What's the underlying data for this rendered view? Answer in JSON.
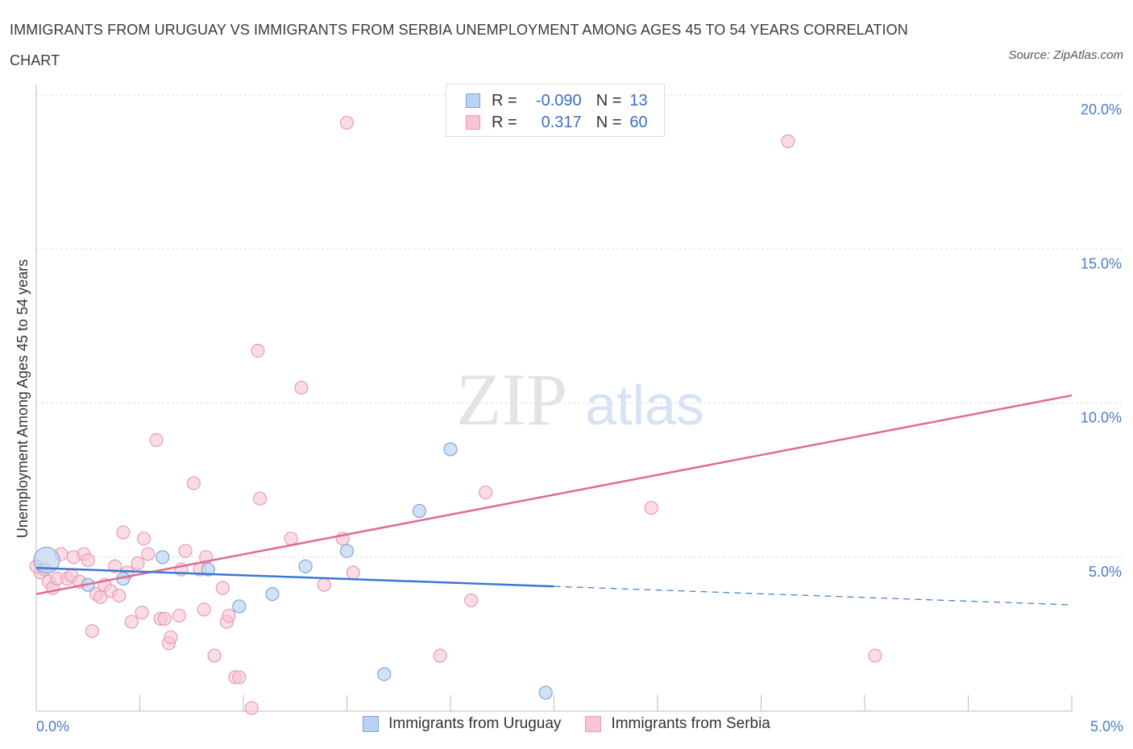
{
  "title": "IMMIGRANTS FROM URUGUAY VS IMMIGRANTS FROM SERBIA UNEMPLOYMENT AMONG AGES 45 TO 54 YEARS CORRELATION CHART",
  "source": "Source: ZipAtlas.com",
  "watermark": {
    "zip": "ZIP",
    "atlas": "atlas"
  },
  "colors": {
    "uruguay_fill": "#b9d2f3",
    "uruguay_stroke": "#7ea6db",
    "uruguay_line": "#3a78d4",
    "serbia_fill": "#f7c5d3",
    "serbia_stroke": "#eb9bb4",
    "serbia_line": "#e06a94",
    "grid": "#dddddd",
    "axis": "#bbbbbb"
  },
  "legend_top": {
    "rows": [
      {
        "r_label": "R = ",
        "r_value": "-0.090",
        "n_label": "N = ",
        "n_value": "13"
      },
      {
        "r_label": "R = ",
        "r_value": "0.317",
        "n_label": "N = ",
        "n_value": "60"
      }
    ]
  },
  "legend_bottom": [
    "Immigrants from Uruguay",
    "Immigrants from Serbia"
  ],
  "chart_data": {
    "type": "scatter",
    "title": "IMMIGRANTS FROM URUGUAY VS IMMIGRANTS FROM SERBIA UNEMPLOYMENT AMONG AGES 45 TO 54 YEARS CORRELATION CHART",
    "xlabel": "",
    "ylabel": "Unemployment Among Ages 45 to 54 years",
    "xlim": [
      0,
      5
    ],
    "ylim": [
      0,
      20
    ],
    "x_tick_labels": [
      "0.0%",
      "5.0%"
    ],
    "y_ticks": [
      5,
      10,
      15,
      20
    ],
    "y_tick_labels": [
      "5.0%",
      "10.0%",
      "15.0%",
      "20.0%"
    ],
    "grid": true,
    "series": [
      {
        "name": "Immigrants from Uruguay",
        "R": -0.09,
        "N": 13,
        "trend": {
          "x0": 0,
          "y0": 4.65,
          "x1": 2.5,
          "y1": 4.05,
          "dash_to_x": 5.0,
          "dash_to_y": 3.45
        },
        "points": [
          {
            "x": 0.05,
            "y": 4.9,
            "big": true
          },
          {
            "x": 0.25,
            "y": 4.1
          },
          {
            "x": 0.42,
            "y": 4.3
          },
          {
            "x": 0.61,
            "y": 5.0
          },
          {
            "x": 0.83,
            "y": 4.6
          },
          {
            "x": 0.98,
            "y": 3.4
          },
          {
            "x": 1.14,
            "y": 3.8
          },
          {
            "x": 1.3,
            "y": 4.7
          },
          {
            "x": 1.5,
            "y": 5.2
          },
          {
            "x": 1.68,
            "y": 1.2
          },
          {
            "x": 1.85,
            "y": 6.5
          },
          {
            "x": 2.0,
            "y": 8.5
          },
          {
            "x": 2.46,
            "y": 0.6
          }
        ]
      },
      {
        "name": "Immigrants from Serbia",
        "R": 0.317,
        "N": 60,
        "trend": {
          "x0": 0,
          "y0": 3.8,
          "x1": 5.0,
          "y1": 10.25
        },
        "points": [
          {
            "x": 0.02,
            "y": 4.5
          },
          {
            "x": 0.06,
            "y": 4.2
          },
          {
            "x": 0.08,
            "y": 4.0
          },
          {
            "x": 0.1,
            "y": 4.3
          },
          {
            "x": 0.12,
            "y": 5.1
          },
          {
            "x": 0.15,
            "y": 4.3
          },
          {
            "x": 0.17,
            "y": 4.4
          },
          {
            "x": 0.18,
            "y": 5.0
          },
          {
            "x": 0.21,
            "y": 4.2
          },
          {
            "x": 0.23,
            "y": 5.1
          },
          {
            "x": 0.25,
            "y": 4.9
          },
          {
            "x": 0.27,
            "y": 2.6
          },
          {
            "x": 0.29,
            "y": 3.8
          },
          {
            "x": 0.31,
            "y": 3.7
          },
          {
            "x": 0.33,
            "y": 4.1
          },
          {
            "x": 0.36,
            "y": 3.9
          },
          {
            "x": 0.38,
            "y": 4.7
          },
          {
            "x": 0.4,
            "y": 3.75
          },
          {
            "x": 0.42,
            "y": 5.8
          },
          {
            "x": 0.44,
            "y": 4.5
          },
          {
            "x": 0.46,
            "y": 2.9
          },
          {
            "x": 0.49,
            "y": 4.8
          },
          {
            "x": 0.51,
            "y": 3.2
          },
          {
            "x": 0.52,
            "y": 5.6
          },
          {
            "x": 0.54,
            "y": 5.1
          },
          {
            "x": 0.58,
            "y": 8.8
          },
          {
            "x": 0.6,
            "y": 3.0
          },
          {
            "x": 0.62,
            "y": 3.0
          },
          {
            "x": 0.64,
            "y": 2.2
          },
          {
            "x": 0.65,
            "y": 2.4
          },
          {
            "x": 0.69,
            "y": 3.1
          },
          {
            "x": 0.7,
            "y": 4.6
          },
          {
            "x": 0.72,
            "y": 5.2
          },
          {
            "x": 0.76,
            "y": 7.4
          },
          {
            "x": 0.79,
            "y": 4.6
          },
          {
            "x": 0.81,
            "y": 3.3
          },
          {
            "x": 0.82,
            "y": 5.0
          },
          {
            "x": 0.86,
            "y": 1.8
          },
          {
            "x": 0.9,
            "y": 4.0
          },
          {
            "x": 0.92,
            "y": 2.9
          },
          {
            "x": 0.93,
            "y": 3.1
          },
          {
            "x": 0.96,
            "y": 1.1
          },
          {
            "x": 0.98,
            "y": 1.1
          },
          {
            "x": 1.04,
            "y": 0.1
          },
          {
            "x": 1.07,
            "y": 11.7
          },
          {
            "x": 1.08,
            "y": 6.9
          },
          {
            "x": 1.23,
            "y": 5.6
          },
          {
            "x": 1.28,
            "y": 10.5
          },
          {
            "x": 1.39,
            "y": 4.1
          },
          {
            "x": 1.48,
            "y": 5.6
          },
          {
            "x": 1.53,
            "y": 4.5
          },
          {
            "x": 1.5,
            "y": 19.1
          },
          {
            "x": 1.95,
            "y": 1.8
          },
          {
            "x": 2.1,
            "y": 3.6
          },
          {
            "x": 2.17,
            "y": 7.1
          },
          {
            "x": 2.97,
            "y": 6.6
          },
          {
            "x": 3.63,
            "y": 18.5
          },
          {
            "x": 4.05,
            "y": 1.8
          },
          {
            "x": 0.0,
            "y": 4.7
          },
          {
            "x": 0.04,
            "y": 4.6
          }
        ]
      }
    ]
  }
}
